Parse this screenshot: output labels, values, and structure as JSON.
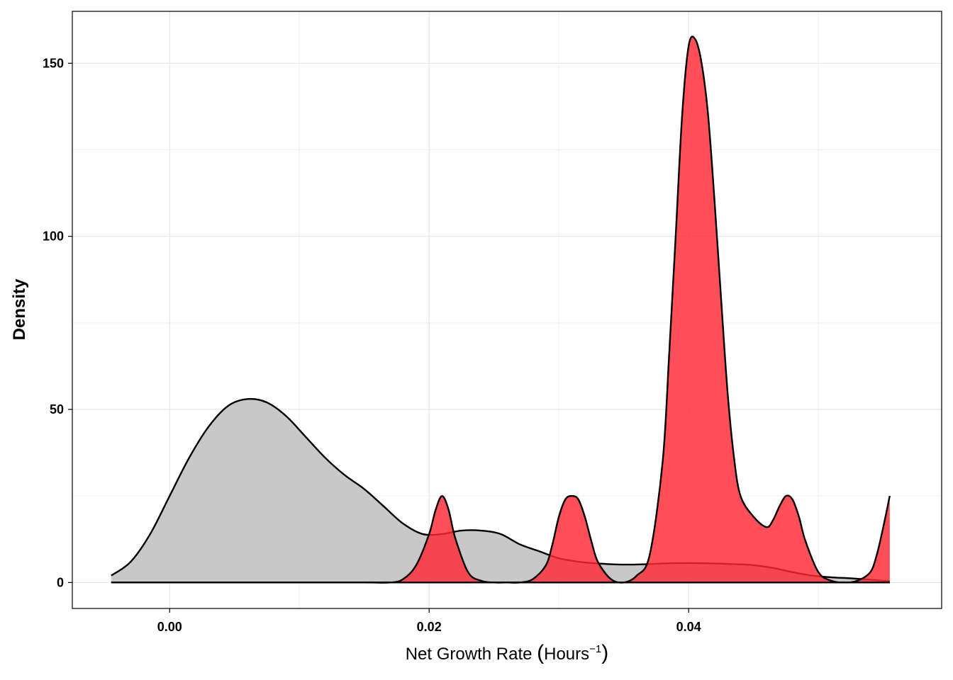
{
  "chart_data": {
    "type": "area",
    "xlabel_main": "Net Growth Rate ",
    "xlabel_unit": "Hours",
    "xlabel_exponent": "−1",
    "ylabel": "Density",
    "xlim": [
      -0.0075,
      0.0595
    ],
    "ylim": [
      -7.5,
      165
    ],
    "x_ticks": [
      0.0,
      0.02,
      0.04
    ],
    "x_tick_labels": [
      "0.00",
      "0.02",
      "0.04"
    ],
    "y_ticks": [
      0,
      50,
      100,
      150
    ],
    "y_tick_labels": [
      "0",
      "50",
      "100",
      "150"
    ],
    "grid": true,
    "legend": "none",
    "series": [
      {
        "color": "#c8c8c8",
        "x": [
          -0.0045,
          -0.003,
          -0.0015,
          0.0,
          0.0015,
          0.003,
          0.0045,
          0.006,
          0.0075,
          0.009,
          0.0105,
          0.012,
          0.0135,
          0.015,
          0.0165,
          0.018,
          0.0195,
          0.021,
          0.0225,
          0.024,
          0.0255,
          0.027,
          0.0285,
          0.03,
          0.0315,
          0.033,
          0.0345,
          0.036,
          0.0375,
          0.039,
          0.0405,
          0.042,
          0.0435,
          0.045,
          0.0465,
          0.048,
          0.0495,
          0.051,
          0.0525,
          0.054,
          0.0555
        ],
        "values": [
          2,
          6,
          14,
          25,
          36,
          45,
          51,
          53,
          52,
          48,
          42,
          36,
          31,
          27,
          22,
          17,
          14,
          14,
          15,
          15,
          14,
          11,
          9,
          7,
          6,
          5.5,
          5.2,
          5.2,
          5.4,
          5.6,
          5.6,
          5.5,
          5.3,
          5.0,
          4.2,
          3,
          2,
          1.5,
          1.2,
          0.8,
          0.4
        ]
      },
      {
        "color": "#ff2a34",
        "x": [
          -0.0045,
          0.0,
          0.005,
          0.01,
          0.015,
          0.017,
          0.018,
          0.019,
          0.02,
          0.0205,
          0.021,
          0.0215,
          0.022,
          0.023,
          0.024,
          0.025,
          0.026,
          0.027,
          0.028,
          0.029,
          0.0295,
          0.03,
          0.0305,
          0.031,
          0.0315,
          0.032,
          0.0325,
          0.033,
          0.034,
          0.035,
          0.036,
          0.037,
          0.038,
          0.0385,
          0.039,
          0.0395,
          0.04,
          0.0405,
          0.041,
          0.0415,
          0.042,
          0.0425,
          0.043,
          0.0435,
          0.044,
          0.045,
          0.046,
          0.0465,
          0.047,
          0.0475,
          0.048,
          0.0485,
          0.049,
          0.05,
          0.051,
          0.052,
          0.053,
          0.054,
          0.0545,
          0.055,
          0.0555
        ],
        "values": [
          0,
          0,
          0,
          0,
          0,
          0,
          1,
          5,
          14,
          21,
          25,
          21,
          13,
          3,
          0.5,
          0,
          0,
          0,
          1,
          5,
          11,
          19,
          24,
          25,
          24,
          19,
          12,
          6,
          1,
          0,
          2,
          8,
          35,
          66,
          100,
          135,
          155,
          157,
          150,
          135,
          110,
          82,
          55,
          36,
          25,
          19,
          16,
          18,
          22,
          25,
          24,
          19,
          12,
          3,
          0.5,
          0,
          0.5,
          3,
          8,
          16,
          25
        ]
      }
    ]
  }
}
